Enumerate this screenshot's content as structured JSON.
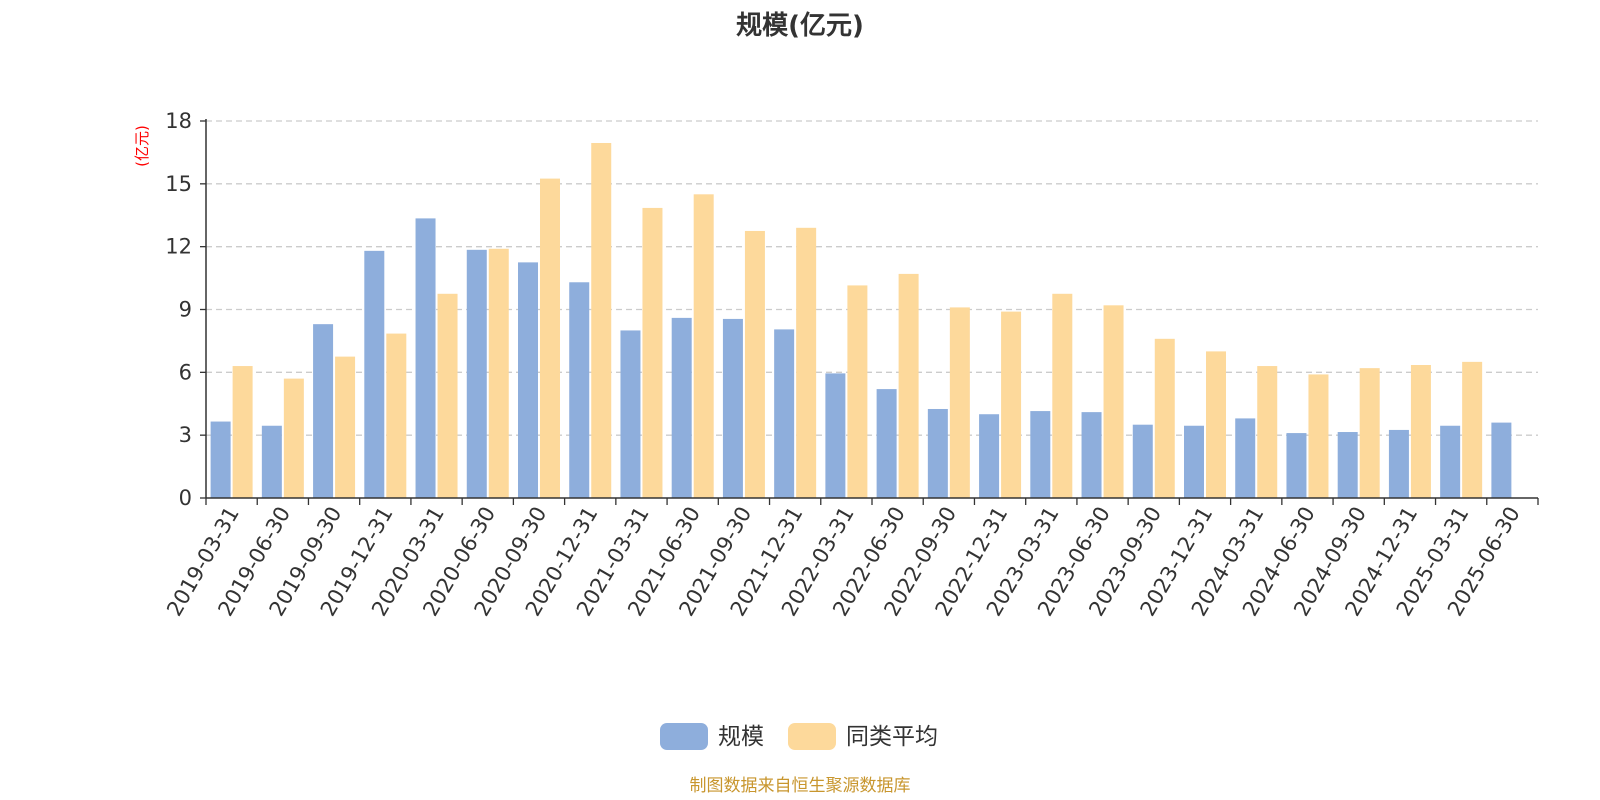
{
  "chart_data": {
    "type": "bar",
    "title": "规模(亿元)",
    "ylabel": "(亿元)",
    "ylim": [
      0,
      18
    ],
    "yticks": [
      0,
      3,
      6,
      9,
      12,
      15,
      18
    ],
    "grid": true,
    "legend_position": "bottom",
    "categories": [
      "2019-03-31",
      "2019-06-30",
      "2019-09-30",
      "2019-12-31",
      "2020-03-31",
      "2020-06-30",
      "2020-09-30",
      "2020-12-31",
      "2021-03-31",
      "2021-06-30",
      "2021-09-30",
      "2021-12-31",
      "2022-03-31",
      "2022-06-30",
      "2022-09-30",
      "2022-12-31",
      "2023-03-31",
      "2023-06-30",
      "2023-09-30",
      "2023-12-31",
      "2024-03-31",
      "2024-06-30",
      "2024-09-30",
      "2024-12-31",
      "2025-03-31",
      "2025-06-30"
    ],
    "series": [
      {
        "name": "规模",
        "color": "#8eaedc",
        "values": [
          3.65,
          3.45,
          8.3,
          11.8,
          13.35,
          11.85,
          11.25,
          10.3,
          8.0,
          8.6,
          8.55,
          8.05,
          5.95,
          5.2,
          4.25,
          4.0,
          4.15,
          4.1,
          3.5,
          3.45,
          3.8,
          3.1,
          3.15,
          3.25,
          3.45,
          3.6
        ]
      },
      {
        "name": "同类平均",
        "color": "#fdd99b",
        "values": [
          6.3,
          5.7,
          6.75,
          7.85,
          9.75,
          11.9,
          15.25,
          16.95,
          13.85,
          14.5,
          12.75,
          12.9,
          10.15,
          10.7,
          9.1,
          8.9,
          9.75,
          9.2,
          7.6,
          7.0,
          6.3,
          5.9,
          6.2,
          6.35,
          6.5,
          null
        ]
      }
    ]
  },
  "footer": {
    "source": "制图数据来自恒生聚源数据库"
  }
}
